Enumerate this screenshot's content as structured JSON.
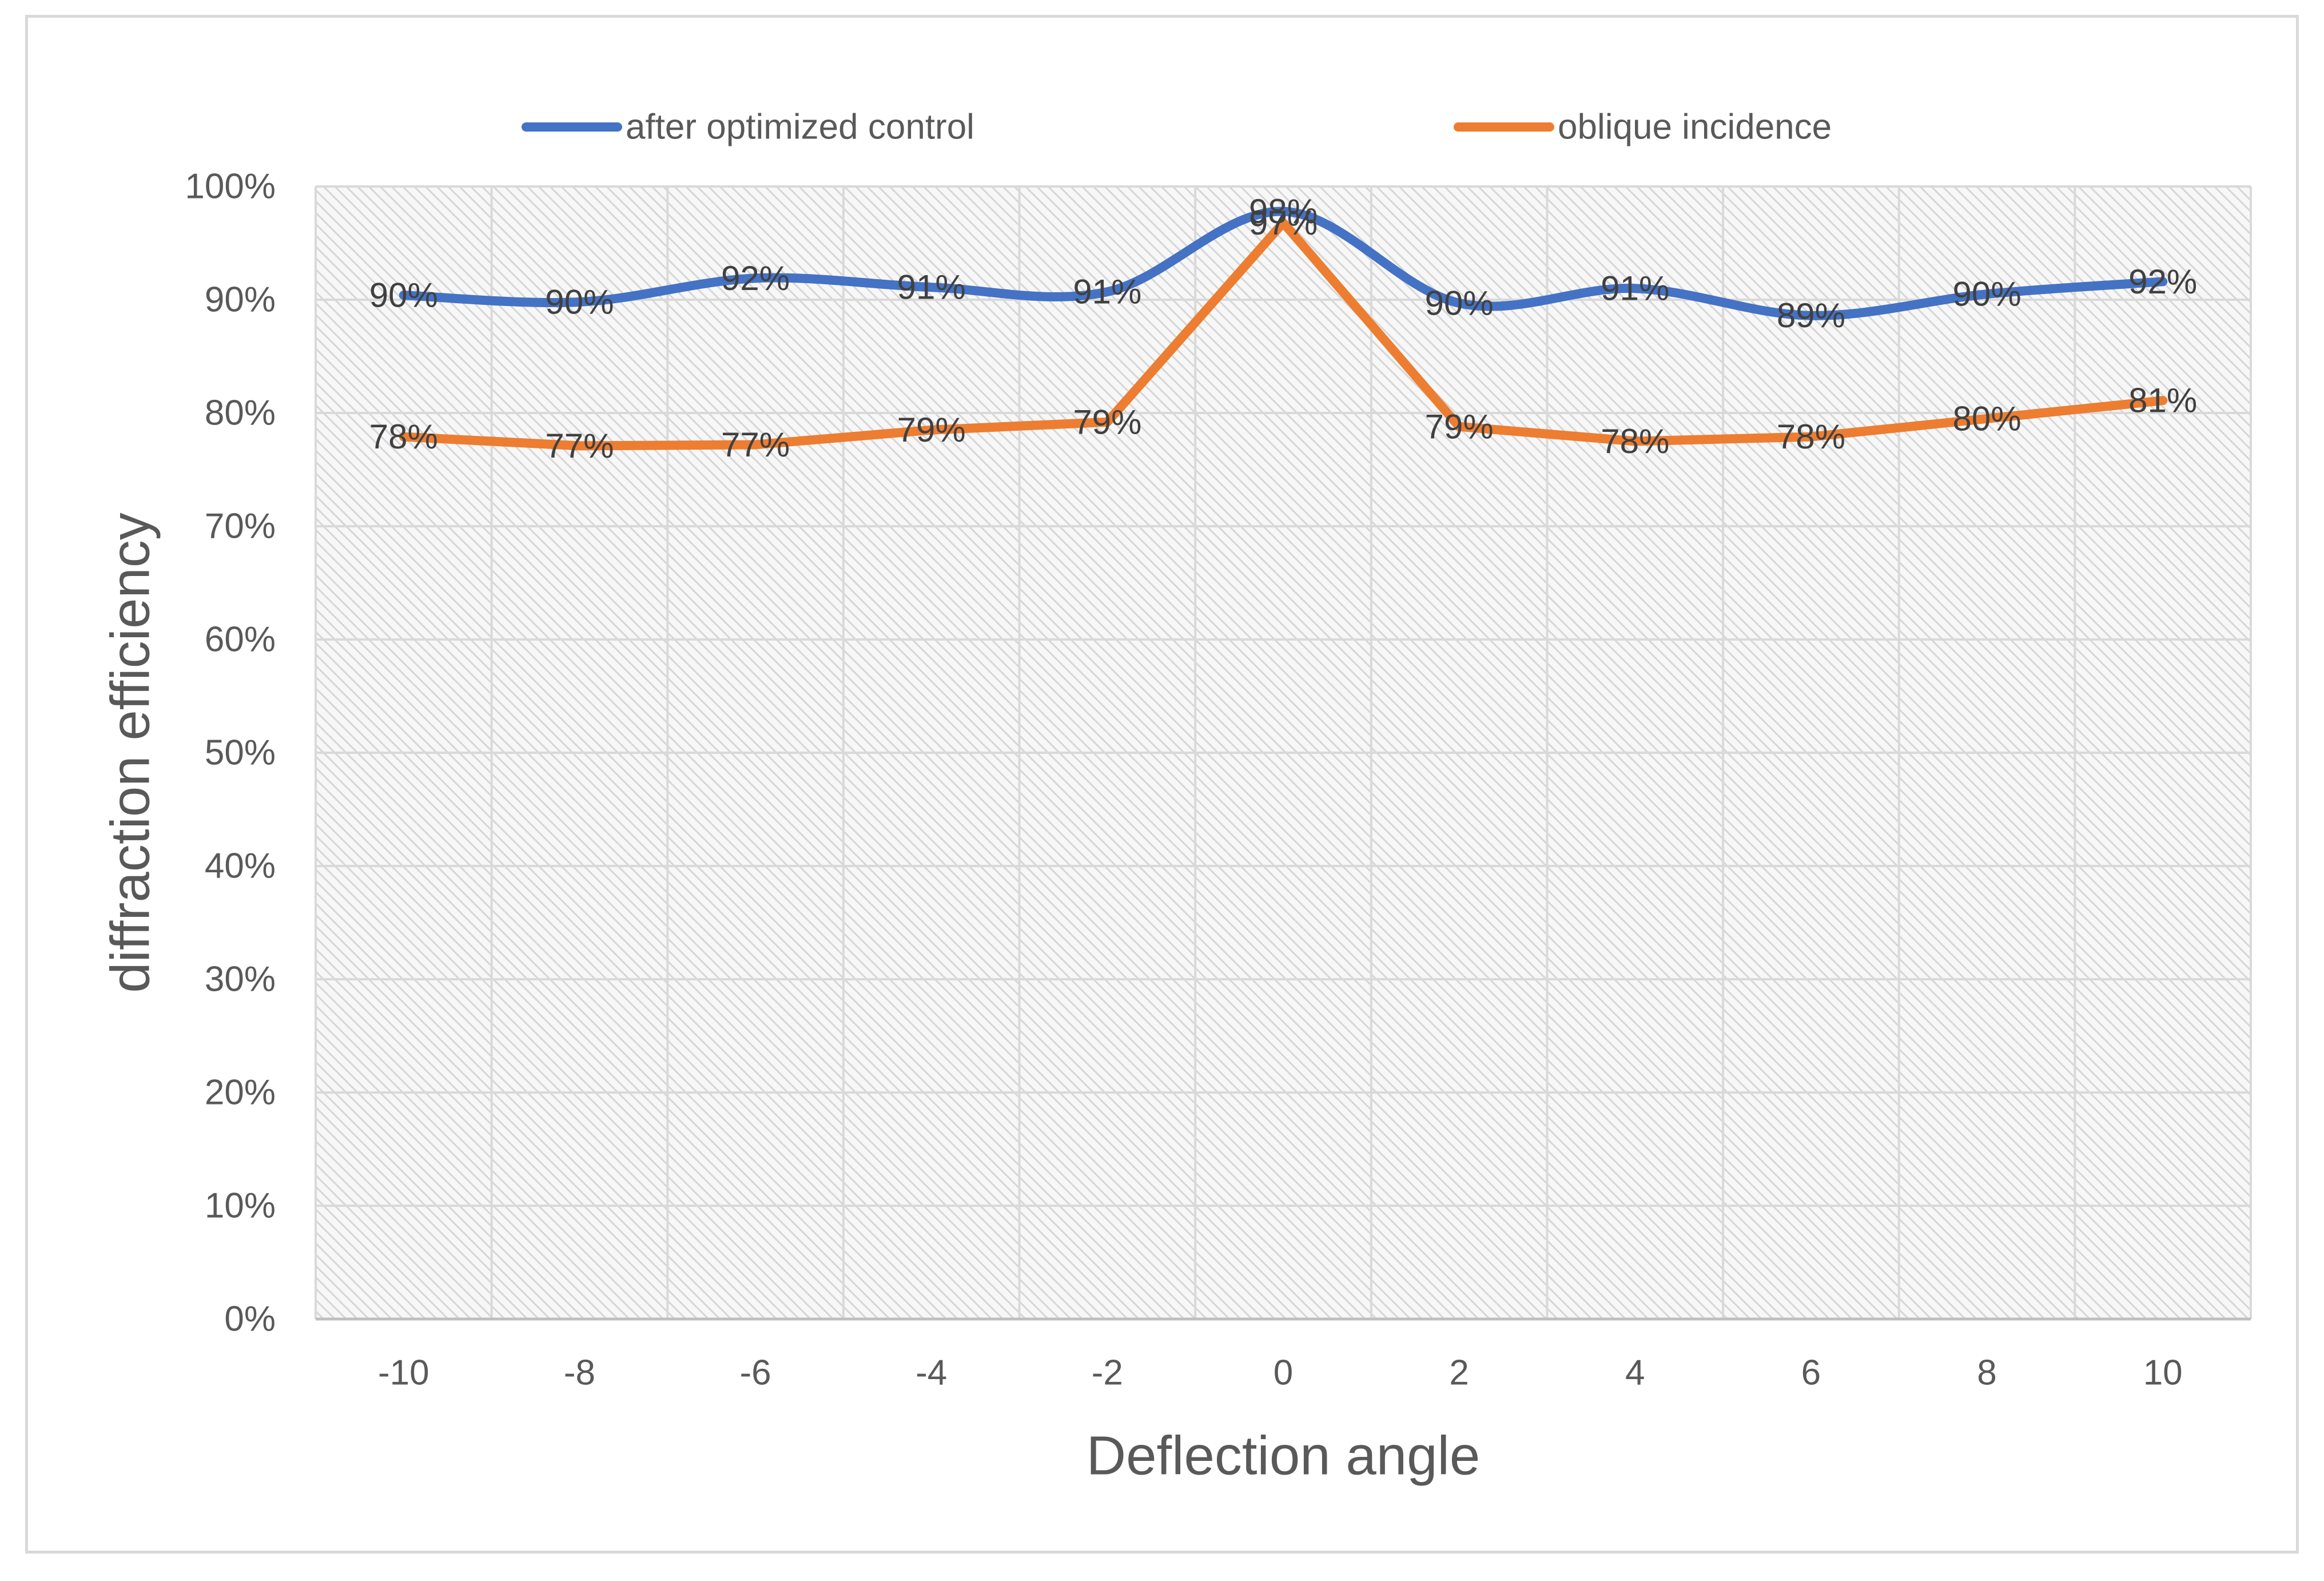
{
  "chart_data": {
    "type": "line",
    "title": "",
    "xlabel": "Deflection angle",
    "ylabel": "diffraction efficiency",
    "categories": [
      "-10",
      "-8",
      "-6",
      "-4",
      "-2",
      "0",
      "2",
      "4",
      "6",
      "8",
      "10"
    ],
    "x": [
      -10,
      -8,
      -6,
      -4,
      -2,
      0,
      2,
      4,
      6,
      8,
      10
    ],
    "ylim": [
      0,
      1
    ],
    "yticks": [
      "0%",
      "10%",
      "20%",
      "30%",
      "40%",
      "50%",
      "60%",
      "70%",
      "80%",
      "90%",
      "100%"
    ],
    "grid": true,
    "legend_position": "top",
    "series": [
      {
        "name": "after optimized control",
        "color": "#4472C4",
        "smooth": true,
        "values": [
          0.904,
          0.898,
          0.919,
          0.911,
          0.907,
          0.978,
          0.897,
          0.91,
          0.886,
          0.905,
          0.916
        ],
        "labels": [
          "90%",
          "90%",
          "92%",
          "91%",
          "91%",
          "98%",
          "90%",
          "91%",
          "89%",
          "90%",
          "92%"
        ]
      },
      {
        "name": "oblique incidence",
        "color": "#ED7D31",
        "smooth": false,
        "values": [
          0.779,
          0.771,
          0.772,
          0.785,
          0.792,
          0.968,
          0.788,
          0.775,
          0.779,
          0.795,
          0.811
        ],
        "labels": [
          "78%",
          "77%",
          "77%",
          "79%",
          "79%",
          "97%",
          "79%",
          "78%",
          "78%",
          "80%",
          "81%"
        ]
      }
    ]
  }
}
